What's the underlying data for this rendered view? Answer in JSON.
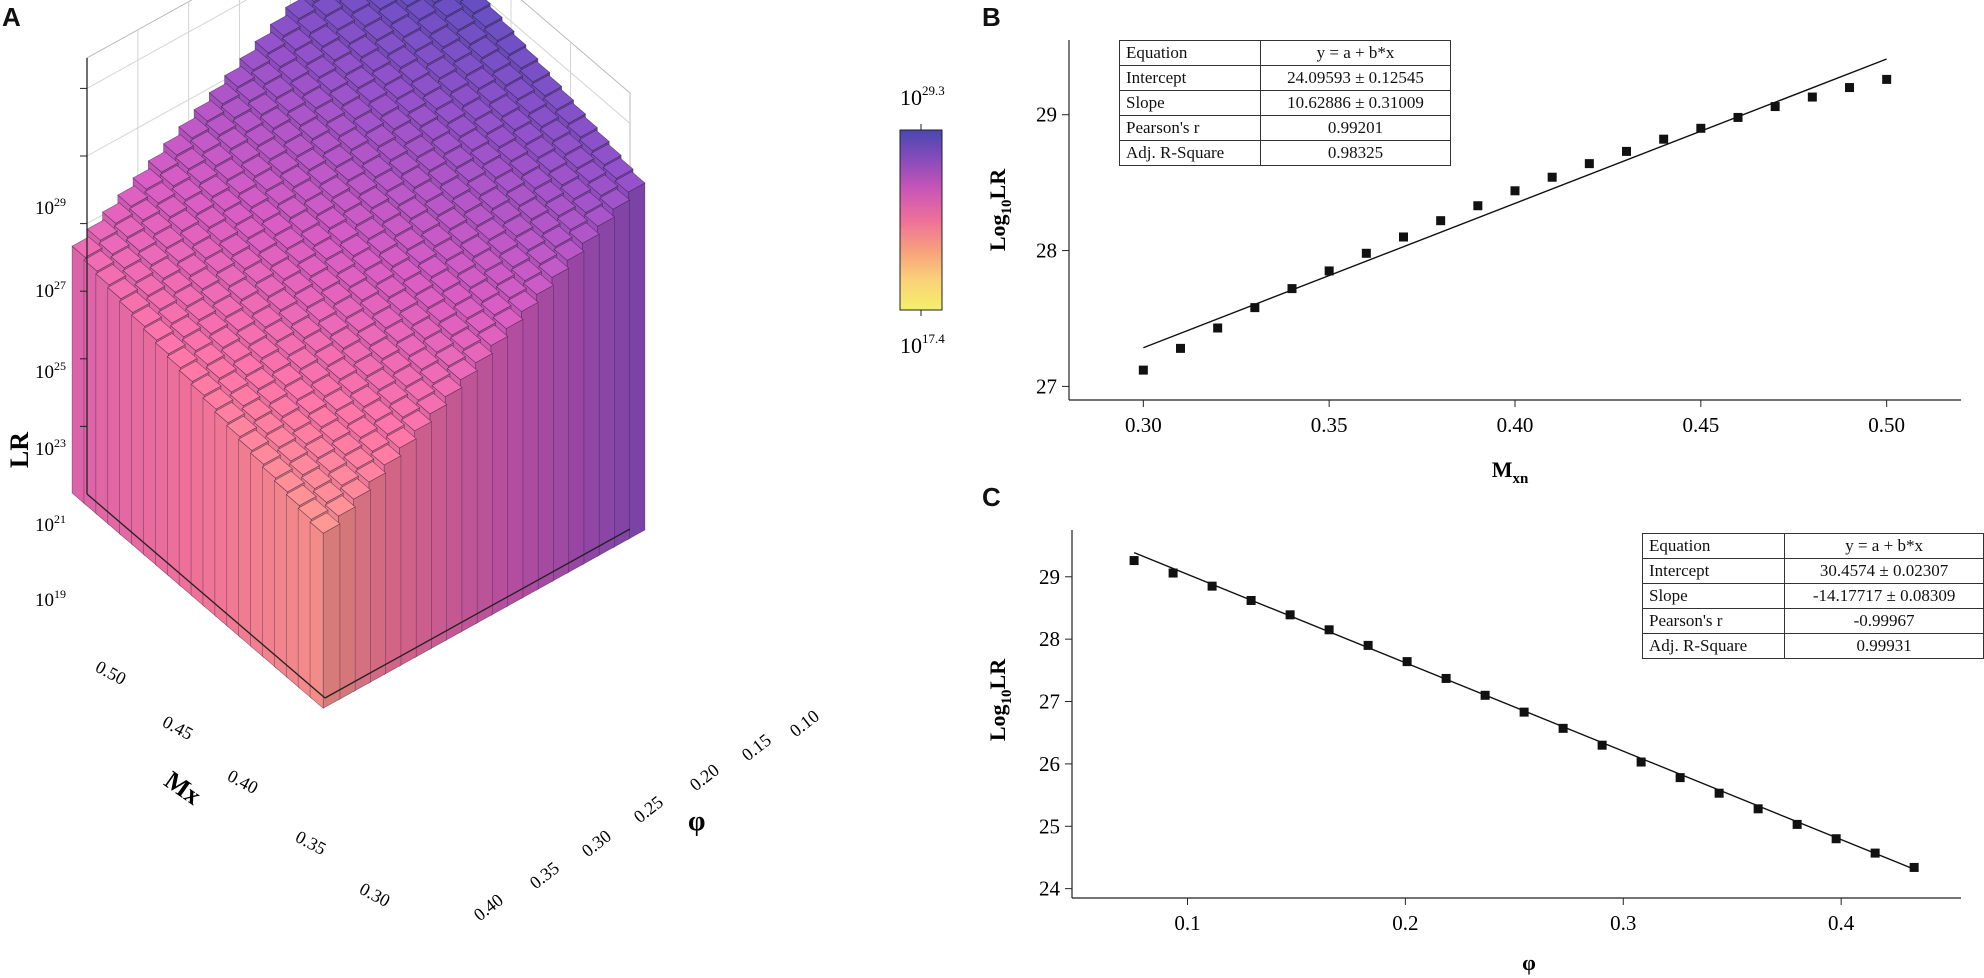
{
  "panels": {
    "a": "A",
    "b": "B",
    "c": "C"
  },
  "chart_data": [
    {
      "id": "A",
      "type": "bar3d",
      "zlabel": "LR",
      "xlabel": "Mx",
      "ylabel": "φ",
      "z_ticks": [
        "10",
        "10",
        "10",
        "10",
        "10",
        "10"
      ],
      "z_tick_exps": [
        "19",
        "21",
        "23",
        "25",
        "27",
        "29"
      ],
      "mx_ticks": [
        "0.30",
        "0.35",
        "0.40",
        "0.45",
        "0.50"
      ],
      "phi_ticks": [
        "0.10",
        "0.15",
        "0.20",
        "0.25",
        "0.30",
        "0.35",
        "0.40"
      ],
      "mx_range": [
        0.3,
        0.5
      ],
      "phi_range": [
        0.075,
        0.434
      ],
      "log10_range": [
        17.4,
        29.3
      ],
      "colorbar": {
        "max_base": "10",
        "max_exp": "29.3",
        "min_base": "10",
        "min_exp": "17.4",
        "colors": [
          "#f4f06a",
          "#fbd07a",
          "#f7a07c",
          "#ee6f9a",
          "#c956b6",
          "#8a4cbc",
          "#4a48b0"
        ]
      }
    },
    {
      "id": "B",
      "type": "scatter",
      "xlabel": "M",
      "xlabel_sub": "xn",
      "ylabel_pre": "Log",
      "ylabel_sub": "10",
      "ylabel_post": "LR",
      "x": [
        0.3,
        0.31,
        0.32,
        0.33,
        0.34,
        0.35,
        0.36,
        0.37,
        0.38,
        0.39,
        0.4,
        0.41,
        0.42,
        0.43,
        0.44,
        0.45,
        0.46,
        0.47,
        0.48,
        0.49,
        0.5
      ],
      "y": [
        27.12,
        27.28,
        27.43,
        27.58,
        27.72,
        27.85,
        27.98,
        28.1,
        28.22,
        28.33,
        28.44,
        28.54,
        28.64,
        28.73,
        28.82,
        28.9,
        28.98,
        29.06,
        29.13,
        29.2,
        29.26
      ],
      "fit": {
        "intercept": 24.09593,
        "slope": 10.62886
      },
      "xlim": [
        0.28,
        0.52
      ],
      "ylim": [
        26.9,
        29.55
      ],
      "xticks": [
        "0.30",
        "0.35",
        "0.40",
        "0.45",
        "0.50"
      ],
      "yticks": [
        "27",
        "28",
        "29"
      ],
      "table": [
        [
          "Equation",
          "y = a + b*x"
        ],
        [
          "Intercept",
          "24.09593 ± 0.12545"
        ],
        [
          "Slope",
          "10.62886 ± 0.31009"
        ],
        [
          "Pearson's r",
          "0.99201"
        ],
        [
          "Adj. R-Square",
          "0.98325"
        ]
      ]
    },
    {
      "id": "C",
      "type": "scatter",
      "xlabel": "φ",
      "ylabel_pre": "Log",
      "ylabel_sub": "10",
      "ylabel_post": "LR",
      "x": [
        0.0755,
        0.0934,
        0.1113,
        0.1292,
        0.1471,
        0.165,
        0.1829,
        0.2008,
        0.2187,
        0.2366,
        0.2545,
        0.2724,
        0.2903,
        0.3082,
        0.3261,
        0.344,
        0.3619,
        0.3798,
        0.3977,
        0.4156,
        0.4335
      ],
      "y": [
        29.26,
        29.06,
        28.85,
        28.62,
        28.39,
        28.15,
        27.9,
        27.64,
        27.37,
        27.1,
        26.83,
        26.57,
        26.3,
        26.03,
        25.78,
        25.53,
        25.28,
        25.03,
        24.8,
        24.57,
        24.34
      ],
      "fit": {
        "intercept": 30.4574,
        "slope": -14.17717
      },
      "xlim": [
        0.047,
        0.455
      ],
      "ylim": [
        23.85,
        29.75
      ],
      "xticks": [
        "0.1",
        "0.2",
        "0.3",
        "0.4"
      ],
      "yticks": [
        "24",
        "25",
        "26",
        "27",
        "28",
        "29"
      ],
      "table": [
        [
          "Equation",
          "y = a + b*x"
        ],
        [
          "Intercept",
          "30.4574 ± 0.02307"
        ],
        [
          "Slope",
          "-14.17717 ± 0.08309"
        ],
        [
          "Pearson's r",
          "-0.99967"
        ],
        [
          "Adj. R-Square",
          "0.99931"
        ]
      ]
    }
  ]
}
